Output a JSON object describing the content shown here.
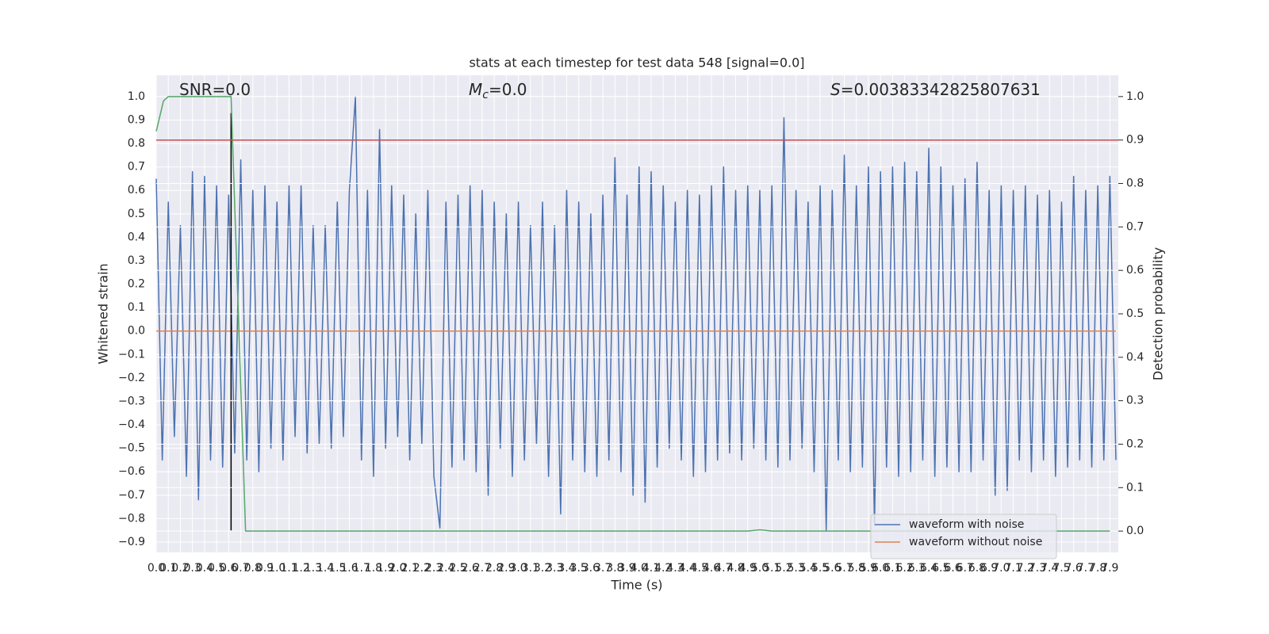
{
  "chart_data": {
    "type": "line",
    "title": "stats at each timestep for test data 548 [signal=0.0]",
    "xlabel": "Time (s)",
    "ylabel": "Whitened strain",
    "y2label": "Detection probability",
    "grid": true,
    "legend": "lower right",
    "xlim": [
      0,
      7.97
    ],
    "ylim": [
      -0.944,
      1.091
    ],
    "y2lim": [
      -0.049,
      1.049
    ],
    "xticks": [
      {
        "value": 0,
        "label": "0.0"
      },
      0.1,
      0.2,
      0.3,
      0.4,
      0.5,
      0.6,
      0.7,
      0.8,
      0.9,
      {
        "value": 1,
        "label": "1.0"
      },
      1.1,
      1.2,
      1.3,
      1.4,
      1.5,
      1.6,
      1.7,
      1.8,
      1.9,
      {
        "value": 2,
        "label": "2.0"
      },
      2.1,
      2.2,
      2.3,
      2.4,
      2.5,
      2.6,
      2.7,
      2.8,
      2.9,
      {
        "value": 3,
        "label": "3.0"
      },
      3.1,
      3.2,
      3.3,
      3.4,
      3.5,
      3.6,
      3.7,
      3.8,
      3.9,
      {
        "value": 4,
        "label": "4.0"
      },
      4.1,
      4.2,
      4.3,
      4.4,
      4.5,
      4.6,
      4.7,
      4.8,
      4.9,
      {
        "value": 5,
        "label": "5.0"
      },
      5.1,
      5.2,
      5.3,
      5.4,
      5.5,
      5.6,
      5.7,
      5.8,
      5.9,
      {
        "value": 6,
        "label": "6.0"
      },
      6.1,
      6.2,
      6.3,
      6.4,
      6.5,
      6.6,
      6.7,
      6.8,
      6.9,
      {
        "value": 7,
        "label": "7.0"
      },
      7.1,
      7.2,
      7.3,
      7.4,
      7.5,
      7.6,
      7.7,
      7.8,
      7.9
    ],
    "yticks": [
      {
        "value": -0.9,
        "label": "−0.9"
      },
      {
        "value": -0.8,
        "label": "−0.8"
      },
      {
        "value": -0.7,
        "label": "−0.7"
      },
      {
        "value": -0.6,
        "label": "−0.6"
      },
      {
        "value": -0.5,
        "label": "−0.5"
      },
      {
        "value": -0.4,
        "label": "−0.4"
      },
      {
        "value": -0.3,
        "label": "−0.3"
      },
      {
        "value": -0.2,
        "label": "−0.2"
      },
      {
        "value": -0.1,
        "label": "−0.1"
      },
      {
        "value": 0,
        "label": "0.0"
      },
      0.1,
      0.2,
      0.3,
      0.4,
      0.5,
      0.6,
      0.7,
      0.8,
      0.9,
      {
        "value": 1,
        "label": "1.0"
      }
    ],
    "y2ticks": [
      {
        "value": 0,
        "label": "0.0"
      },
      0.1,
      0.2,
      0.3,
      0.4,
      0.5,
      0.6,
      0.7,
      0.8,
      0.9,
      {
        "value": 1,
        "label": "1.0"
      }
    ],
    "annotations": [
      {
        "text": "SNR=0.0"
      },
      {
        "math": "M",
        "sub": "c",
        "text": "=0.0"
      },
      {
        "math": "S",
        "text": "=0.00383342825807631"
      }
    ],
    "series": [
      {
        "name": "waveform with noise",
        "color": "#4c72b0",
        "x": [
          0,
          0.05,
          0.1,
          0.15,
          0.2,
          0.25,
          0.3,
          0.35,
          0.4,
          0.45,
          0.5,
          0.55,
          0.6,
          0.65,
          0.7,
          0.75,
          0.8,
          0.85,
          0.9,
          0.95,
          1,
          1.05,
          1.1,
          1.15,
          1.2,
          1.25,
          1.3,
          1.35,
          1.4,
          1.45,
          1.5,
          1.55,
          1.6,
          1.65,
          1.7,
          1.75,
          1.8,
          1.85,
          1.9,
          1.95,
          2,
          2.05,
          2.1,
          2.15,
          2.2,
          2.25,
          2.3,
          2.35,
          2.4,
          2.45,
          2.5,
          2.55,
          2.6,
          2.65,
          2.7,
          2.75,
          2.8,
          2.85,
          2.9,
          2.95,
          3,
          3.05,
          3.1,
          3.15,
          3.2,
          3.25,
          3.3,
          3.35,
          3.4,
          3.45,
          3.5,
          3.55,
          3.6,
          3.65,
          3.7,
          3.75,
          3.8,
          3.85,
          3.9,
          3.95,
          4,
          4.05,
          4.1,
          4.15,
          4.2,
          4.25,
          4.3,
          4.35,
          4.4,
          4.45,
          4.5,
          4.55,
          4.6,
          4.65,
          4.7,
          4.75,
          4.8,
          4.85,
          4.9,
          4.95,
          5,
          5.05,
          5.1,
          5.15,
          5.2,
          5.25,
          5.3,
          5.35,
          5.4,
          5.45,
          5.5,
          5.55,
          5.6,
          5.65,
          5.7,
          5.75,
          5.8,
          5.85,
          5.9,
          5.95,
          6,
          6.05,
          6.1,
          6.15,
          6.2,
          6.25,
          6.3,
          6.35,
          6.4,
          6.45,
          6.5,
          6.55,
          6.6,
          6.65,
          6.7,
          6.75,
          6.8,
          6.85,
          6.9,
          6.95,
          7,
          7.05,
          7.1,
          7.15,
          7.2,
          7.25,
          7.3,
          7.35,
          7.4,
          7.45,
          7.5,
          7.55,
          7.6,
          7.65,
          7.7,
          7.75,
          7.8,
          7.85,
          7.9,
          7.95
        ],
        "values": [
          0.65,
          -0.55,
          0.55,
          -0.45,
          0.45,
          -0.62,
          0.68,
          -0.72,
          0.66,
          -0.55,
          0.62,
          -0.58,
          0.58,
          -0.52,
          0.73,
          -0.55,
          0.6,
          -0.6,
          0.62,
          -0.5,
          0.55,
          -0.55,
          0.62,
          -0.45,
          0.62,
          -0.52,
          0.45,
          -0.48,
          0.45,
          -0.5,
          0.55,
          -0.45,
          0.6,
          1.0,
          -0.55,
          0.6,
          -0.62,
          0.86,
          -0.5,
          0.62,
          -0.45,
          0.58,
          -0.55,
          0.5,
          -0.48,
          0.6,
          -0.62,
          -0.84,
          0.55,
          -0.58,
          0.58,
          -0.55,
          0.62,
          -0.6,
          0.6,
          -0.7,
          0.55,
          -0.5,
          0.5,
          -0.62,
          0.55,
          -0.55,
          0.45,
          -0.48,
          0.55,
          -0.62,
          0.45,
          -0.78,
          0.6,
          -0.55,
          0.55,
          -0.6,
          0.5,
          -0.62,
          0.58,
          -0.55,
          0.74,
          -0.6,
          0.58,
          -0.7,
          0.7,
          -0.73,
          0.68,
          -0.58,
          0.62,
          -0.5,
          0.55,
          -0.55,
          0.6,
          -0.62,
          0.58,
          -0.6,
          0.62,
          -0.55,
          0.7,
          -0.52,
          0.6,
          -0.55,
          0.62,
          -0.5,
          0.6,
          -0.55,
          0.62,
          -0.58,
          0.91,
          -0.55,
          0.6,
          -0.5,
          0.55,
          -0.6,
          0.62,
          -0.85,
          0.6,
          -0.55,
          0.75,
          -0.6,
          0.62,
          -0.58,
          0.7,
          -0.83,
          0.68,
          -0.58,
          0.7,
          -0.62,
          0.72,
          -0.6,
          0.68,
          -0.55,
          0.78,
          -0.62,
          0.7,
          -0.58,
          0.62,
          -0.6,
          0.65,
          -0.6,
          0.72,
          -0.55,
          0.6,
          -0.7,
          0.62,
          -0.68,
          0.6,
          -0.55,
          0.62,
          -0.6,
          0.58,
          -0.55,
          0.6,
          -0.62,
          0.55,
          -0.58,
          0.66,
          -0.55,
          0.6,
          -0.58,
          0.62,
          -0.55,
          0.66,
          -0.55
        ]
      },
      {
        "name": "waveform without noise",
        "color": "#dd8452",
        "x": [
          0,
          7.95
        ],
        "values": [
          0,
          0
        ]
      },
      {
        "color": "#55a868",
        "axis": "y2",
        "x": [
          0,
          0.06,
          0.1,
          0.62,
          0.74,
          0.8,
          4.9,
          5.0,
          5.1,
          7.9
        ],
        "values": [
          0.92,
          0.99,
          1.0,
          1.0,
          0.0,
          0.0,
          0.0,
          0.003,
          0.0,
          0.0
        ]
      }
    ],
    "hlines": [
      {
        "y": 0.9,
        "axis": "y2",
        "color": "#c44e52"
      }
    ],
    "vlines": [
      {
        "x": 0.62,
        "ymin": -0.85,
        "ymax": 0.93,
        "color": "#000000"
      }
    ]
  }
}
